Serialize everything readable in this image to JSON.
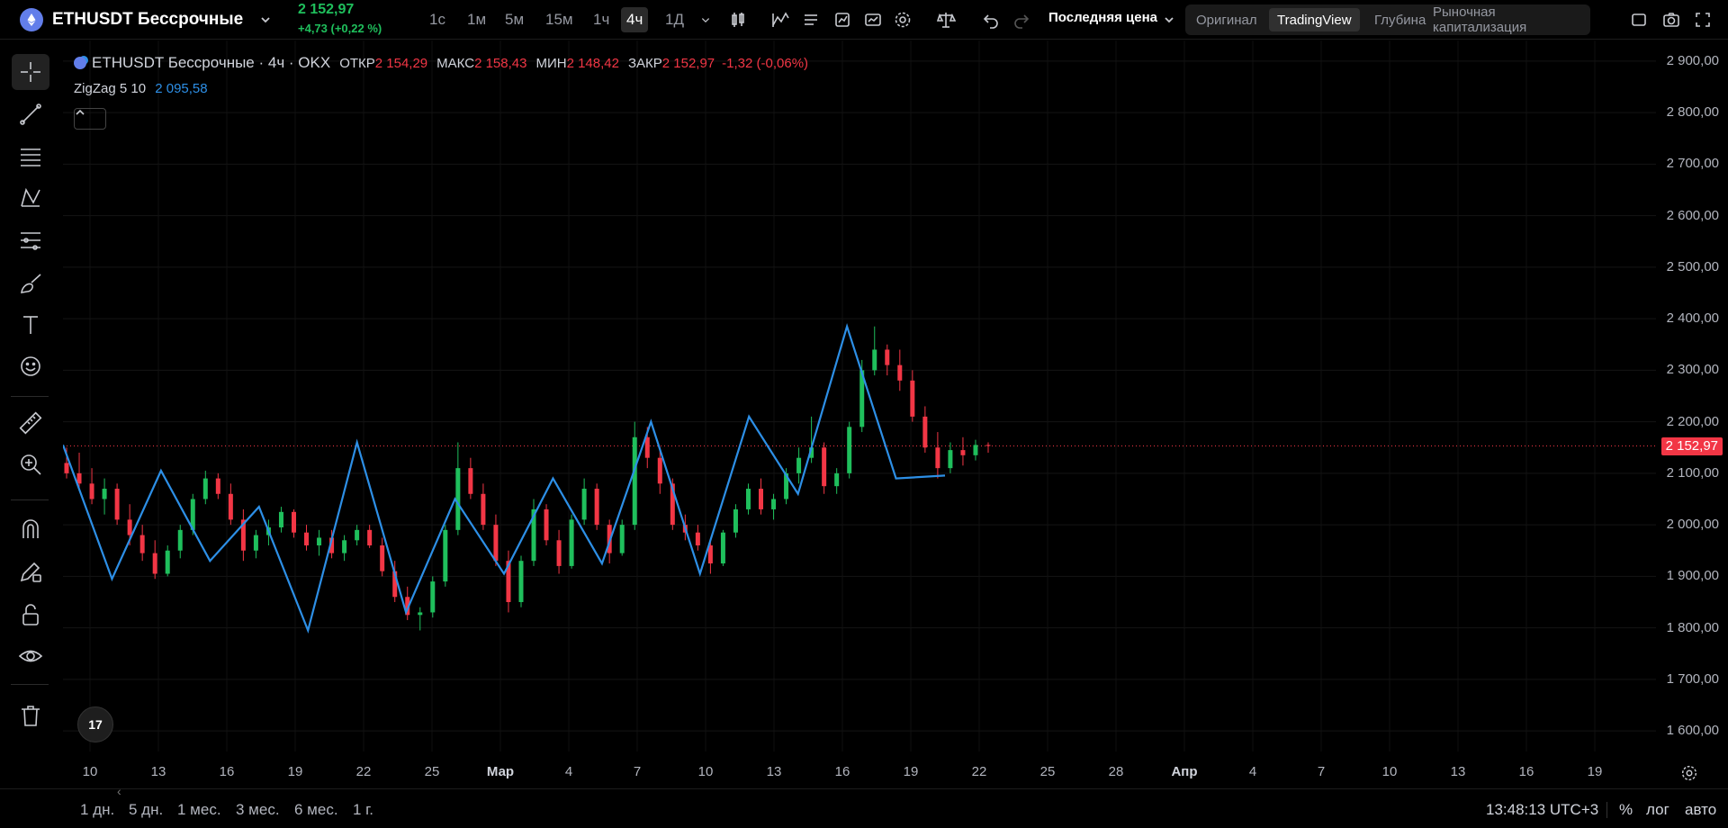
{
  "header": {
    "symbol": "ETHUSDT Бессрочные",
    "last_price": "2 152,97",
    "change": "+4,73 (+0,22 %)",
    "timeframes": [
      "1с",
      "1м",
      "5м",
      "15м",
      "1ч",
      "4ч",
      "1Д"
    ],
    "active_timeframe": "4ч",
    "price_type": "Последняя цена",
    "view_tabs": [
      "Оригинал",
      "TradingView",
      "Глубина",
      "Рыночная капитализация"
    ],
    "active_view_tab": "TradingView"
  },
  "legend": {
    "title": "ETHUSDT Бессрочные · 4ч · OKX",
    "open_label": "ОТКР",
    "open": "2 154,29",
    "high_label": "МАКС",
    "high": "2 158,43",
    "low_label": "МИН",
    "low": "2 148,42",
    "close_label": "ЗАКР",
    "close": "2 152,97",
    "change": "-1,32 (-0,06%)",
    "indicator": "ZigZag 5 10",
    "indicator_value": "2 095,58"
  },
  "price_axis": {
    "labels": [
      "2 900,00",
      "2 800,00",
      "2 700,00",
      "2 600,00",
      "2 500,00",
      "2 400,00",
      "2 300,00",
      "2 200,00",
      "2 100,00",
      "2 000,00",
      "1 900,00",
      "1 800,00",
      "1 700,00",
      "1 600,00"
    ],
    "last_price_label": "2 152,97"
  },
  "time_axis": {
    "labels": [
      "10",
      "13",
      "16",
      "19",
      "22",
      "25",
      "Мар",
      "4",
      "7",
      "10",
      "13",
      "16",
      "19",
      "22",
      "25",
      "28",
      "Апр",
      "4",
      "7",
      "10",
      "13",
      "16",
      "19"
    ],
    "bold_labels": [
      "Мар",
      "Апр"
    ]
  },
  "bottom": {
    "ranges": [
      "1 дн.",
      "5 дн.",
      "1 мес.",
      "3 мес.",
      "6 мес.",
      "1 г."
    ],
    "clock": "13:48:13 UTC+3",
    "percent": "%",
    "log": "лог",
    "auto": "авто"
  },
  "tv_logo": "17",
  "colors": {
    "up": "#1fbf5c",
    "down": "#f23645",
    "zigzag": "#2d8fe6",
    "background": "#000000"
  },
  "chart_data": {
    "type": "candlestick",
    "y_range": [
      1560,
      2940
    ],
    "last_price": 2152.97,
    "zigzag_pivots": [
      {
        "date": "Feb 9",
        "price": 2155
      },
      {
        "date": "Feb 12",
        "price": 1895
      },
      {
        "date": "Feb 14",
        "price": 2105
      },
      {
        "date": "Feb 16",
        "price": 1930
      },
      {
        "date": "Feb 18",
        "price": 2035
      },
      {
        "date": "Feb 24",
        "price": 1795
      },
      {
        "date": "Feb 25",
        "price": 2160
      },
      {
        "date": "Feb 27",
        "price": 1830
      },
      {
        "date": "Feb 28",
        "price": 2050
      },
      {
        "date": "Feb 29",
        "price": 1905
      },
      {
        "date": "Mar 1",
        "price": 2090
      },
      {
        "date": "Mar 3",
        "price": 1925
      },
      {
        "date": "Mar 4",
        "price": 2200
      },
      {
        "date": "Mar 8",
        "price": 1905
      },
      {
        "date": "Mar 13",
        "price": 2210
      },
      {
        "date": "Mar 14",
        "price": 2060
      },
      {
        "date": "Mar 16",
        "price": 2385
      },
      {
        "date": "Mar 19",
        "price": 2090
      },
      {
        "date": "Mar 19 (last)",
        "price": 2095.58
      }
    ],
    "candles": [
      {
        "o": 2120,
        "h": 2150,
        "l": 2090,
        "c": 2100
      },
      {
        "o": 2100,
        "h": 2140,
        "l": 2070,
        "c": 2080
      },
      {
        "o": 2080,
        "h": 2110,
        "l": 2040,
        "c": 2050
      },
      {
        "o": 2050,
        "h": 2090,
        "l": 2020,
        "c": 2070
      },
      {
        "o": 2070,
        "h": 2080,
        "l": 2000,
        "c": 2010
      },
      {
        "o": 2010,
        "h": 2040,
        "l": 1960,
        "c": 1980
      },
      {
        "o": 1980,
        "h": 2000,
        "l": 1930,
        "c": 1945
      },
      {
        "o": 1945,
        "h": 1970,
        "l": 1895,
        "c": 1905
      },
      {
        "o": 1905,
        "h": 1960,
        "l": 1900,
        "c": 1950
      },
      {
        "o": 1950,
        "h": 2000,
        "l": 1935,
        "c": 1990
      },
      {
        "o": 1990,
        "h": 2060,
        "l": 1980,
        "c": 2050
      },
      {
        "o": 2050,
        "h": 2105,
        "l": 2040,
        "c": 2090
      },
      {
        "o": 2090,
        "h": 2100,
        "l": 2050,
        "c": 2060
      },
      {
        "o": 2060,
        "h": 2080,
        "l": 2000,
        "c": 2010
      },
      {
        "o": 2010,
        "h": 2030,
        "l": 1930,
        "c": 1950
      },
      {
        "o": 1950,
        "h": 1990,
        "l": 1935,
        "c": 1980
      },
      {
        "o": 1980,
        "h": 2010,
        "l": 1960,
        "c": 1995
      },
      {
        "o": 1995,
        "h": 2035,
        "l": 1985,
        "c": 2025
      },
      {
        "o": 2025,
        "h": 2030,
        "l": 1975,
        "c": 1985
      },
      {
        "o": 1985,
        "h": 2000,
        "l": 1950,
        "c": 1960
      },
      {
        "o": 1960,
        "h": 1990,
        "l": 1940,
        "c": 1975
      },
      {
        "o": 1975,
        "h": 1990,
        "l": 1935,
        "c": 1945
      },
      {
        "o": 1945,
        "h": 1980,
        "l": 1930,
        "c": 1970
      },
      {
        "o": 1970,
        "h": 2000,
        "l": 1960,
        "c": 1990
      },
      {
        "o": 1990,
        "h": 2000,
        "l": 1955,
        "c": 1960
      },
      {
        "o": 1960,
        "h": 1975,
        "l": 1900,
        "c": 1910
      },
      {
        "o": 1910,
        "h": 1930,
        "l": 1850,
        "c": 1860
      },
      {
        "o": 1860,
        "h": 1880,
        "l": 1815,
        "c": 1825
      },
      {
        "o": 1825,
        "h": 1840,
        "l": 1795,
        "c": 1830
      },
      {
        "o": 1830,
        "h": 1900,
        "l": 1820,
        "c": 1890
      },
      {
        "o": 1890,
        "h": 2000,
        "l": 1880,
        "c": 1990
      },
      {
        "o": 1990,
        "h": 2160,
        "l": 1980,
        "c": 2110
      },
      {
        "o": 2110,
        "h": 2130,
        "l": 2050,
        "c": 2060
      },
      {
        "o": 2060,
        "h": 2080,
        "l": 1990,
        "c": 2000
      },
      {
        "o": 2000,
        "h": 2020,
        "l": 1920,
        "c": 1930
      },
      {
        "o": 1930,
        "h": 1950,
        "l": 1830,
        "c": 1850
      },
      {
        "o": 1850,
        "h": 1940,
        "l": 1840,
        "c": 1930
      },
      {
        "o": 1930,
        "h": 2050,
        "l": 1920,
        "c": 2030
      },
      {
        "o": 2030,
        "h": 2040,
        "l": 1960,
        "c": 1970
      },
      {
        "o": 1970,
        "h": 1990,
        "l": 1905,
        "c": 1920
      },
      {
        "o": 1920,
        "h": 2020,
        "l": 1915,
        "c": 2010
      },
      {
        "o": 2010,
        "h": 2090,
        "l": 2000,
        "c": 2070
      },
      {
        "o": 2070,
        "h": 2080,
        "l": 1990,
        "c": 2000
      },
      {
        "o": 2000,
        "h": 2010,
        "l": 1925,
        "c": 1945
      },
      {
        "o": 1945,
        "h": 2010,
        "l": 1940,
        "c": 2000
      },
      {
        "o": 2000,
        "h": 2200,
        "l": 1990,
        "c": 2170
      },
      {
        "o": 2170,
        "h": 2190,
        "l": 2110,
        "c": 2130
      },
      {
        "o": 2130,
        "h": 2150,
        "l": 2060,
        "c": 2080
      },
      {
        "o": 2080,
        "h": 2090,
        "l": 1990,
        "c": 2000
      },
      {
        "o": 2000,
        "h": 2020,
        "l": 1970,
        "c": 1985
      },
      {
        "o": 1985,
        "h": 2000,
        "l": 1950,
        "c": 1960
      },
      {
        "o": 1960,
        "h": 1970,
        "l": 1905,
        "c": 1925
      },
      {
        "o": 1925,
        "h": 1990,
        "l": 1920,
        "c": 1985
      },
      {
        "o": 1985,
        "h": 2040,
        "l": 1975,
        "c": 2030
      },
      {
        "o": 2030,
        "h": 2080,
        "l": 2020,
        "c": 2070
      },
      {
        "o": 2070,
        "h": 2090,
        "l": 2020,
        "c": 2030
      },
      {
        "o": 2030,
        "h": 2060,
        "l": 2010,
        "c": 2050
      },
      {
        "o": 2050,
        "h": 2110,
        "l": 2040,
        "c": 2100
      },
      {
        "o": 2100,
        "h": 2150,
        "l": 2080,
        "c": 2130
      },
      {
        "o": 2130,
        "h": 2210,
        "l": 2120,
        "c": 2150
      },
      {
        "o": 2150,
        "h": 2160,
        "l": 2060,
        "c": 2075
      },
      {
        "o": 2075,
        "h": 2110,
        "l": 2060,
        "c": 2100
      },
      {
        "o": 2100,
        "h": 2200,
        "l": 2090,
        "c": 2190
      },
      {
        "o": 2190,
        "h": 2320,
        "l": 2180,
        "c": 2300
      },
      {
        "o": 2300,
        "h": 2385,
        "l": 2290,
        "c": 2340
      },
      {
        "o": 2340,
        "h": 2350,
        "l": 2290,
        "c": 2310
      },
      {
        "o": 2310,
        "h": 2340,
        "l": 2260,
        "c": 2280
      },
      {
        "o": 2280,
        "h": 2300,
        "l": 2200,
        "c": 2210
      },
      {
        "o": 2210,
        "h": 2230,
        "l": 2140,
        "c": 2150
      },
      {
        "o": 2150,
        "h": 2180,
        "l": 2090,
        "c": 2110
      },
      {
        "o": 2110,
        "h": 2160,
        "l": 2100,
        "c": 2145
      },
      {
        "o": 2145,
        "h": 2170,
        "l": 2115,
        "c": 2135
      },
      {
        "o": 2135,
        "h": 2165,
        "l": 2125,
        "c": 2155
      },
      {
        "o": 2155,
        "h": 2160,
        "l": 2140,
        "c": 2153
      }
    ]
  }
}
